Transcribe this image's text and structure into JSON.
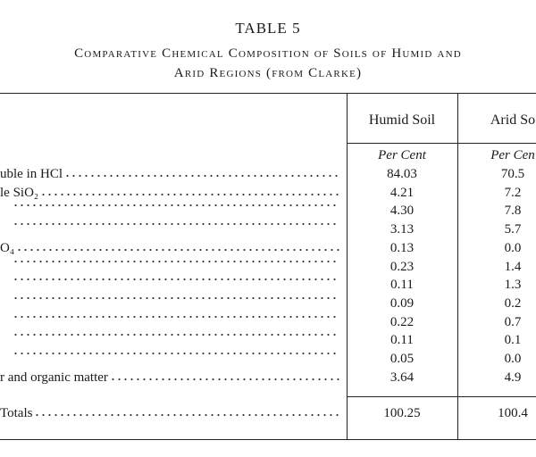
{
  "header": {
    "title": "TABLE 5",
    "subtitle": [
      "Comparative Chemical Composition of Soils of Humid and",
      "Arid Regions (from Clarke)"
    ]
  },
  "table": {
    "columns": [
      "Humid Soil",
      "Arid So"
    ],
    "units": [
      "Per Cent",
      "Per Cen"
    ],
    "rows": [
      {
        "label": "uble in HCl",
        "values": [
          "84.03",
          "70.5"
        ]
      },
      {
        "label": "le SiO₂",
        "values": [
          "4.21",
          "7.2"
        ]
      },
      {
        "values": [
          "4.30",
          "7.8"
        ]
      },
      {
        "values": [
          "3.13",
          "5.7"
        ]
      },
      {
        "label": "O₄",
        "values": [
          "0.13",
          "0.0"
        ]
      },
      {
        "values": [
          "0.23",
          "1.4"
        ]
      },
      {
        "values": [
          "0.11",
          "1.3"
        ]
      },
      {
        "values": [
          "0.09",
          "0.2"
        ]
      },
      {
        "values": [
          "0.22",
          "0.7"
        ]
      },
      {
        "values": [
          "0.11",
          "0.1"
        ]
      },
      {
        "values": [
          "0.05",
          "0.0"
        ]
      },
      {
        "label": "r and organic matter",
        "values": [
          "3.64",
          "4.9"
        ]
      }
    ],
    "totals": {
      "label": "Totals",
      "values": [
        "100.25",
        "100.4"
      ]
    }
  }
}
